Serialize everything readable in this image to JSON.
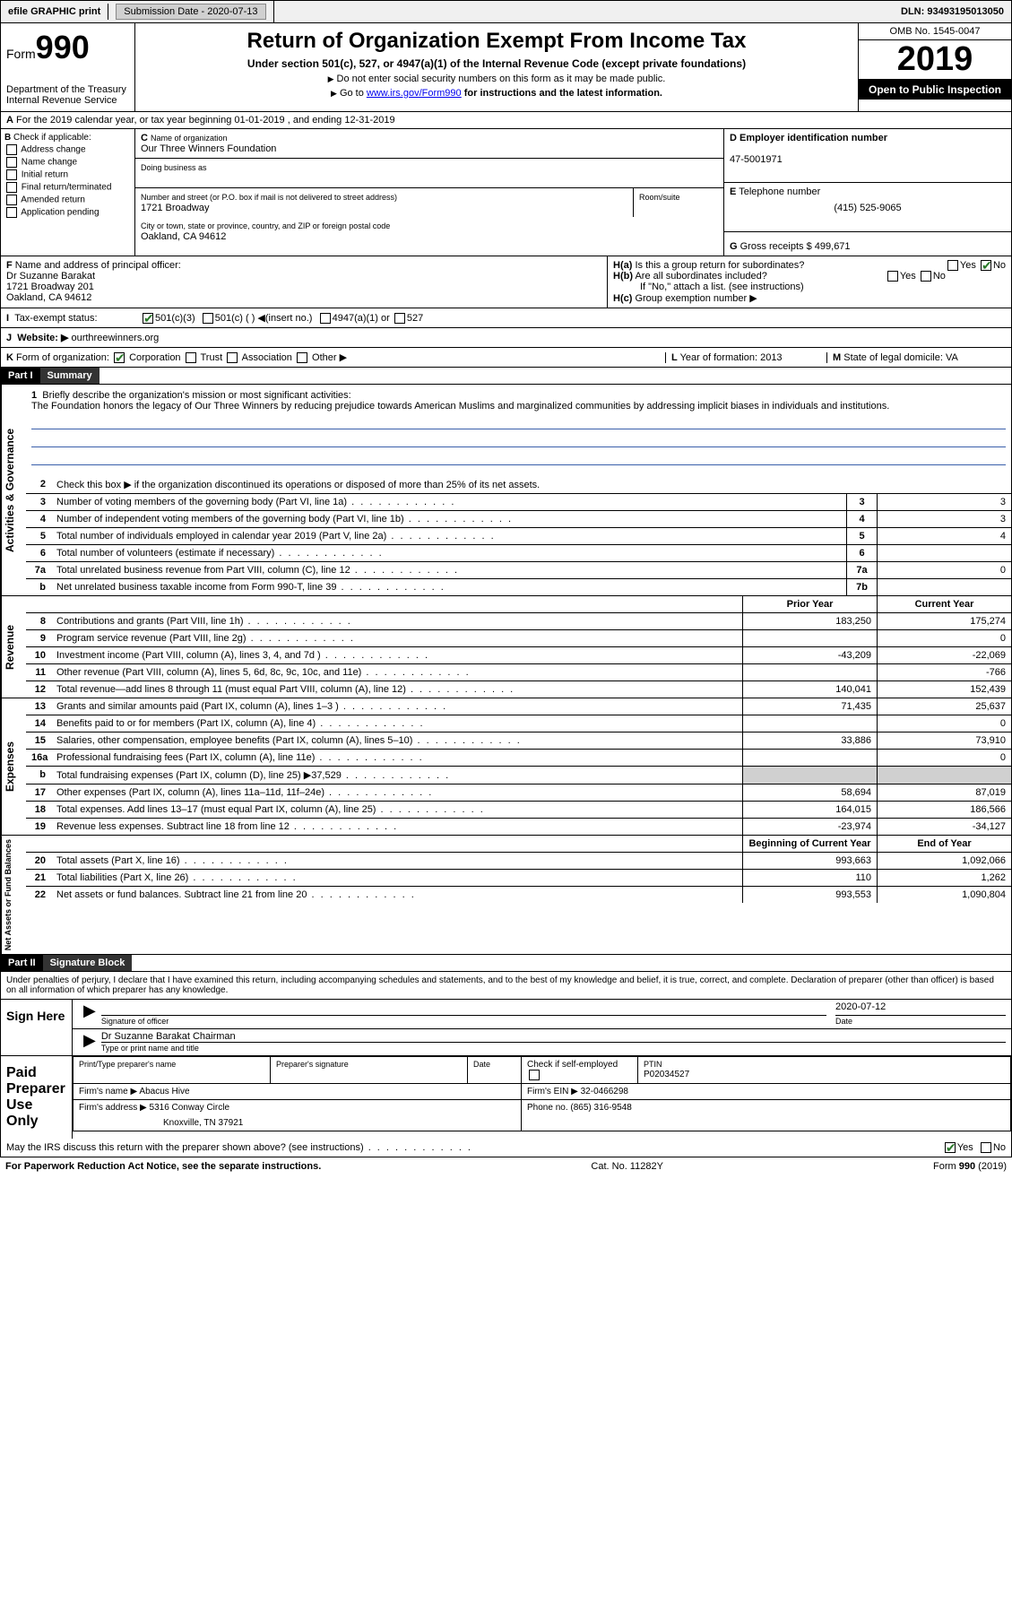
{
  "topbar": {
    "efile": "efile GRAPHIC print",
    "submission_label": "Submission Date - 2020-07-13",
    "dln": "DLN: 93493195013050"
  },
  "header": {
    "form_label": "Form",
    "form_number": "990",
    "dept": "Department of the Treasury",
    "irs": "Internal Revenue Service",
    "title": "Return of Organization Exempt From Income Tax",
    "subtitle": "Under section 501(c), 527, or 4947(a)(1) of the Internal Revenue Code (except private foundations)",
    "note1": "Do not enter social security numbers on this form as it may be made public.",
    "note2_pre": "Go to ",
    "note2_link": "www.irs.gov/Form990",
    "note2_post": " for instructions and the latest information.",
    "omb": "OMB No. 1545-0047",
    "year": "2019",
    "open": "Open to Public Inspection"
  },
  "section_a": "For the 2019 calendar year, or tax year beginning 01-01-2019   , and ending 12-31-2019",
  "col_b": {
    "header": "Check if applicable:",
    "items": [
      "Address change",
      "Name change",
      "Initial return",
      "Final return/terminated",
      "Amended return",
      "Application pending"
    ]
  },
  "col_c": {
    "name_label": "Name of organization",
    "name": "Our Three Winners Foundation",
    "dba_label": "Doing business as",
    "dba": "",
    "addr_label": "Number and street (or P.O. box if mail is not delivered to street address)",
    "addr": "1721 Broadway",
    "room_label": "Room/suite",
    "city_label": "City or town, state or province, country, and ZIP or foreign postal code",
    "city": "Oakland, CA  94612"
  },
  "col_d": {
    "label": "Employer identification number",
    "value": "47-5001971"
  },
  "col_e": {
    "label": "Telephone number",
    "value": "(415) 525-9065"
  },
  "col_g": {
    "label": "Gross receipts $",
    "value": "499,671"
  },
  "col_f": {
    "label": "Name and address of principal officer:",
    "name": "Dr Suzanne Barakat",
    "addr1": "1721 Broadway 201",
    "addr2": "Oakland, CA  94612"
  },
  "col_h": {
    "a": "Is this a group return for subordinates?",
    "b": "Are all subordinates included?",
    "b_note": "If \"No,\" attach a list. (see instructions)",
    "c": "Group exemption number ▶"
  },
  "tax_status": {
    "label": "Tax-exempt status:",
    "o1": "501(c)(3)",
    "o2": "501(c) (   ) ◀(insert no.)",
    "o3": "4947(a)(1) or",
    "o4": "527"
  },
  "website": {
    "label": "Website: ▶",
    "value": "ourthreewinners.org"
  },
  "line_k": {
    "label": "Form of organization:",
    "opts": [
      "Corporation",
      "Trust",
      "Association",
      "Other ▶"
    ]
  },
  "line_l": {
    "label": "Year of formation:",
    "value": "2013"
  },
  "line_m": {
    "label": "State of legal domicile:",
    "value": "VA"
  },
  "part1": {
    "hdr": "Part I",
    "title": "Summary",
    "q1": "Briefly describe the organization's mission or most significant activities:",
    "mission": "The Foundation honors the legacy of Our Three Winners by reducing prejudice towards American Muslims and marginalized communities by addressing implicit biases in individuals and institutions.",
    "q2": "Check this box ▶        if the organization discontinued its operations or disposed of more than 25% of its net assets.",
    "side_a": "Activities & Governance",
    "side_r": "Revenue",
    "side_e": "Expenses",
    "side_n": "Net Assets or Fund Balances",
    "col_prior": "Prior Year",
    "col_current": "Current Year",
    "col_beg": "Beginning of Current Year",
    "col_end": "End of Year",
    "rows_gov": [
      {
        "n": "3",
        "label": "Number of voting members of the governing body (Part VI, line 1a)",
        "box": "3",
        "v": "3"
      },
      {
        "n": "4",
        "label": "Number of independent voting members of the governing body (Part VI, line 1b)",
        "box": "4",
        "v": "3"
      },
      {
        "n": "5",
        "label": "Total number of individuals employed in calendar year 2019 (Part V, line 2a)",
        "box": "5",
        "v": "4"
      },
      {
        "n": "6",
        "label": "Total number of volunteers (estimate if necessary)",
        "box": "6",
        "v": ""
      },
      {
        "n": "7a",
        "label": "Total unrelated business revenue from Part VIII, column (C), line 12",
        "box": "7a",
        "v": "0"
      },
      {
        "n": "b",
        "label": "Net unrelated business taxable income from Form 990-T, line 39",
        "box": "7b",
        "v": ""
      }
    ],
    "rows_rev": [
      {
        "n": "8",
        "label": "Contributions and grants (Part VIII, line 1h)",
        "p": "183,250",
        "c": "175,274"
      },
      {
        "n": "9",
        "label": "Program service revenue (Part VIII, line 2g)",
        "p": "",
        "c": "0"
      },
      {
        "n": "10",
        "label": "Investment income (Part VIII, column (A), lines 3, 4, and 7d )",
        "p": "-43,209",
        "c": "-22,069"
      },
      {
        "n": "11",
        "label": "Other revenue (Part VIII, column (A), lines 5, 6d, 8c, 9c, 10c, and 11e)",
        "p": "",
        "c": "-766"
      },
      {
        "n": "12",
        "label": "Total revenue—add lines 8 through 11 (must equal Part VIII, column (A), line 12)",
        "p": "140,041",
        "c": "152,439"
      }
    ],
    "rows_exp": [
      {
        "n": "13",
        "label": "Grants and similar amounts paid (Part IX, column (A), lines 1–3 )",
        "p": "71,435",
        "c": "25,637"
      },
      {
        "n": "14",
        "label": "Benefits paid to or for members (Part IX, column (A), line 4)",
        "p": "",
        "c": "0"
      },
      {
        "n": "15",
        "label": "Salaries, other compensation, employee benefits (Part IX, column (A), lines 5–10)",
        "p": "33,886",
        "c": "73,910"
      },
      {
        "n": "16a",
        "label": "Professional fundraising fees (Part IX, column (A), line 11e)",
        "p": "",
        "c": "0"
      },
      {
        "n": "b",
        "label": "Total fundraising expenses (Part IX, column (D), line 25) ▶37,529",
        "p": "SHADE",
        "c": "SHADE"
      },
      {
        "n": "17",
        "label": "Other expenses (Part IX, column (A), lines 11a–11d, 11f–24e)",
        "p": "58,694",
        "c": "87,019"
      },
      {
        "n": "18",
        "label": "Total expenses. Add lines 13–17 (must equal Part IX, column (A), line 25)",
        "p": "164,015",
        "c": "186,566"
      },
      {
        "n": "19",
        "label": "Revenue less expenses. Subtract line 18 from line 12",
        "p": "-23,974",
        "c": "-34,127"
      }
    ],
    "rows_net": [
      {
        "n": "20",
        "label": "Total assets (Part X, line 16)",
        "p": "993,663",
        "c": "1,092,066"
      },
      {
        "n": "21",
        "label": "Total liabilities (Part X, line 26)",
        "p": "110",
        "c": "1,262"
      },
      {
        "n": "22",
        "label": "Net assets or fund balances. Subtract line 21 from line 20",
        "p": "993,553",
        "c": "1,090,804"
      }
    ]
  },
  "part2": {
    "hdr": "Part II",
    "title": "Signature Block",
    "declaration": "Under penalties of perjury, I declare that I have examined this return, including accompanying schedules and statements, and to the best of my knowledge and belief, it is true, correct, and complete. Declaration of preparer (other than officer) is based on all information of which preparer has any knowledge.",
    "sign_here": "Sign Here",
    "sig_officer": "Signature of officer",
    "date_label": "Date",
    "date": "2020-07-12",
    "name_title": "Dr Suzanne Barakat Chairman",
    "name_title_label": "Type or print name and title",
    "paid": "Paid Preparer Use Only",
    "prep_name_label": "Print/Type preparer's name",
    "prep_sig_label": "Preparer's signature",
    "check_self": "Check        if self-employed",
    "ptin_label": "PTIN",
    "ptin": "P02034527",
    "firm_name_label": "Firm's name     ▶",
    "firm_name": "Abacus Hive",
    "firm_ein_label": "Firm's EIN ▶",
    "firm_ein": "32-0466298",
    "firm_addr_label": "Firm's address ▶",
    "firm_addr1": "5316 Conway Circle",
    "firm_addr2": "Knoxville, TN  37921",
    "phone_label": "Phone no.",
    "phone": "(865) 316-9548",
    "discuss": "May the IRS discuss this return with the preparer shown above? (see instructions)"
  },
  "footer": {
    "left": "For Paperwork Reduction Act Notice, see the separate instructions.",
    "mid": "Cat. No. 11282Y",
    "right": "Form 990 (2019)"
  },
  "yn": {
    "yes": "Yes",
    "no": "No"
  },
  "letters": {
    "A": "A",
    "B": "B",
    "C": "C",
    "D": "D",
    "E": "E",
    "F": "F",
    "G": "G",
    "H_a": "H(a)",
    "H_b": "H(b)",
    "H_c": "H(c)",
    "I": "I",
    "J": "J",
    "K": "K",
    "L": "L",
    "M": "M"
  }
}
